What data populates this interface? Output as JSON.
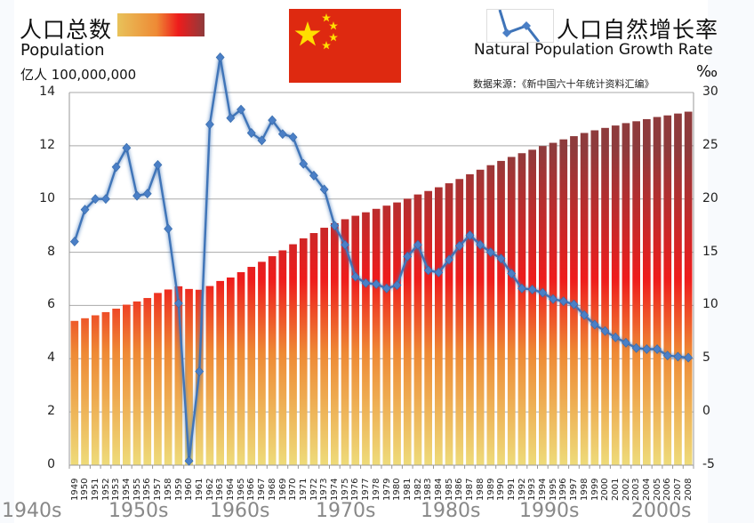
{
  "header": {
    "left_title_cn": "人口总数",
    "left_title_en": "Population",
    "left_unit": "亿人 100,000,000",
    "right_title_cn": "人口自然增长率",
    "right_title_en": "Natural Population Growth Rate",
    "right_unit": "‰",
    "source": "数据来源：《新中国六十年统计资料汇编》"
  },
  "colors": {
    "line": "#3f74b8",
    "marker": "#4a7fc6",
    "bar_top": "#8e3b3c",
    "bar_mid": "#ee1c1c",
    "bar_low": "#ee8a35",
    "bar_bottom": "#eedb7a",
    "flag_red": "#de2910",
    "flag_star": "#ffde00",
    "grid": "#a9a9a9"
  },
  "axes": {
    "left_ticks": [
      "0",
      "2",
      "4",
      "6",
      "8",
      "10",
      "12",
      "14"
    ],
    "right_ticks": [
      "-5",
      "0",
      "5",
      "10",
      "15",
      "20",
      "25",
      "30"
    ]
  },
  "decades": [
    "1940s",
    "1950s",
    "1960s",
    "1970s",
    "1980s",
    "1990s",
    "2000s"
  ],
  "chart_data": {
    "type": "bar+line",
    "title": "人口总数 Population / 人口自然增长率 Natural Population Growth Rate",
    "source_note": "数据来源：《新中国六十年统计资料汇编》",
    "categories": [
      "1949",
      "1950",
      "1951",
      "1952",
      "1953",
      "1954",
      "1955",
      "1956",
      "1957",
      "1958",
      "1959",
      "1960",
      "1961",
      "1962",
      "1963",
      "1964",
      "1965",
      "1966",
      "1967",
      "1968",
      "1969",
      "1970",
      "1971",
      "1972",
      "1973",
      "1974",
      "1975",
      "1976",
      "1977",
      "1978",
      "1979",
      "1980",
      "1981",
      "1982",
      "1983",
      "1984",
      "1985",
      "1986",
      "1987",
      "1988",
      "1989",
      "1990",
      "1991",
      "1992",
      "1993",
      "1994",
      "1995",
      "1996",
      "1997",
      "1998",
      "1999",
      "2000",
      "2001",
      "2002",
      "2003",
      "2004",
      "2005",
      "2006",
      "2007",
      "2008"
    ],
    "series": [
      {
        "name": "人口总数 Population (亿人)",
        "type": "bar",
        "axis": "left",
        "values": [
          5.42,
          5.52,
          5.63,
          5.75,
          5.88,
          6.03,
          6.15,
          6.28,
          6.47,
          6.6,
          6.72,
          6.62,
          6.59,
          6.73,
          6.92,
          7.05,
          7.25,
          7.45,
          7.64,
          7.85,
          8.07,
          8.3,
          8.52,
          8.72,
          8.92,
          9.09,
          9.24,
          9.37,
          9.5,
          9.63,
          9.75,
          9.87,
          10.01,
          10.17,
          10.3,
          10.44,
          10.59,
          10.75,
          10.93,
          11.1,
          11.27,
          11.43,
          11.58,
          11.72,
          11.85,
          11.99,
          12.11,
          12.24,
          12.36,
          12.48,
          12.58,
          12.67,
          12.76,
          12.85,
          12.92,
          13.0,
          13.08,
          13.14,
          13.21,
          13.28
        ]
      },
      {
        "name": "人口自然增长率 Natural Population Growth Rate (‰)",
        "type": "line",
        "axis": "right",
        "values": [
          16.0,
          19.0,
          20.0,
          20.0,
          23.0,
          24.8,
          20.3,
          20.5,
          23.2,
          17.2,
          10.2,
          -4.6,
          3.8,
          27.0,
          33.3,
          27.6,
          28.4,
          26.2,
          25.5,
          27.4,
          26.1,
          25.8,
          23.3,
          22.2,
          20.9,
          17.5,
          15.7,
          12.7,
          12.1,
          12.0,
          11.6,
          11.9,
          14.6,
          15.7,
          13.3,
          13.1,
          14.3,
          15.6,
          16.6,
          15.7,
          15.0,
          14.4,
          13.0,
          11.6,
          11.5,
          11.2,
          10.6,
          10.4,
          10.1,
          9.1,
          8.2,
          7.6,
          7.0,
          6.5,
          6.0,
          5.9,
          5.9,
          5.3,
          5.2,
          5.1
        ]
      }
    ],
    "left_axis": {
      "label": "亿人 100,000,000",
      "range": [
        0,
        14
      ],
      "ticks": [
        0,
        2,
        4,
        6,
        8,
        10,
        12,
        14
      ]
    },
    "right_axis": {
      "label": "‰",
      "range": [
        -5,
        30
      ],
      "ticks": [
        -5,
        0,
        5,
        10,
        15,
        20,
        25,
        30
      ]
    },
    "xlabel": "",
    "grid": true,
    "legend": [
      "人口总数 Population",
      "人口自然增长率 Natural Population Growth Rate"
    ]
  }
}
